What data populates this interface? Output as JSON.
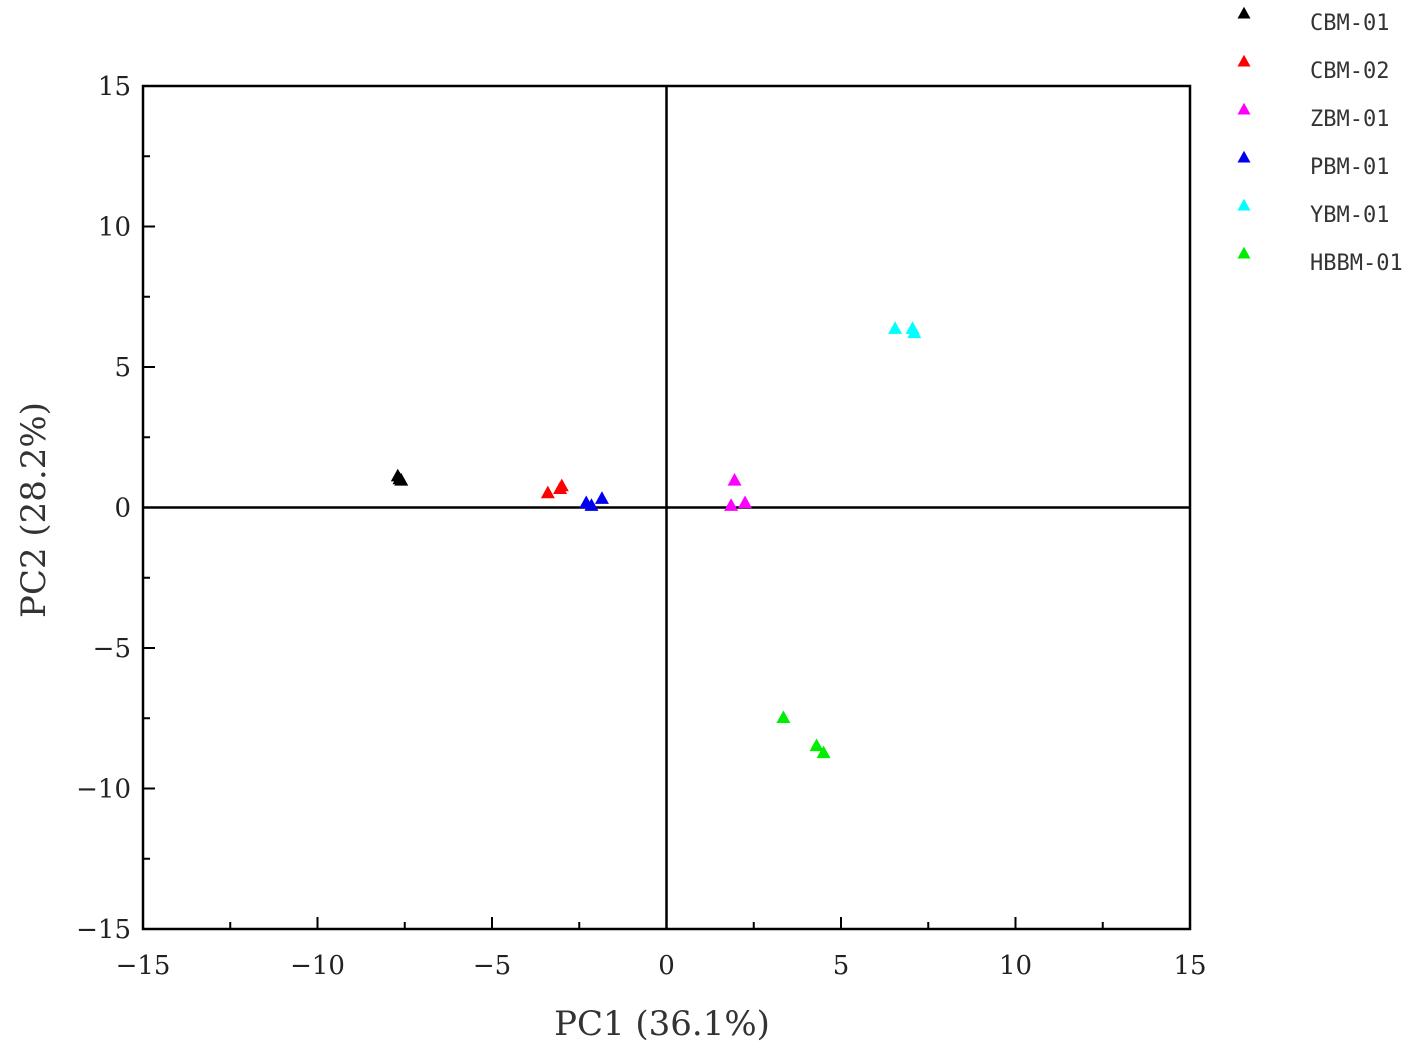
{
  "chart_data": {
    "type": "scatter",
    "title": "",
    "xlabel": "PC1 (36.1%)",
    "ylabel": "PC2 (28.2%)",
    "xlim": [
      -15,
      15
    ],
    "ylim": [
      -15,
      15
    ],
    "xticks": [
      -15,
      -10,
      -5,
      0,
      5,
      10,
      15
    ],
    "yticks": [
      -15,
      -10,
      -5,
      0,
      5,
      10,
      15
    ],
    "xtick_labels": [
      "−15",
      "−10",
      "−5",
      "0",
      "5",
      "10",
      "15"
    ],
    "ytick_labels": [
      "−15",
      "−10",
      "−5",
      "0",
      "5",
      "10",
      "15"
    ],
    "grid": false,
    "zero_lines": true,
    "legend_position": "right-top outside",
    "marker": "triangle",
    "series": [
      {
        "name": "CBM-01",
        "color": "#000000",
        "points": [
          [
            -7.7,
            1.1
          ],
          [
            -7.6,
            0.95
          ],
          [
            -7.65,
            1.0
          ]
        ]
      },
      {
        "name": "CBM-02",
        "color": "#ff0000",
        "points": [
          [
            -3.4,
            0.5
          ],
          [
            -3.0,
            0.75
          ],
          [
            -3.05,
            0.65
          ]
        ]
      },
      {
        "name": "ZBM-01",
        "color": "#ff00ff",
        "points": [
          [
            1.95,
            0.95
          ],
          [
            1.85,
            0.05
          ],
          [
            2.25,
            0.15
          ]
        ]
      },
      {
        "name": "PBM-01",
        "color": "#0000ee",
        "points": [
          [
            -2.3,
            0.15
          ],
          [
            -2.15,
            0.05
          ],
          [
            -1.85,
            0.3
          ]
        ]
      },
      {
        "name": "YBM-01",
        "color": "#00ffff",
        "points": [
          [
            6.55,
            6.35
          ],
          [
            7.05,
            6.35
          ],
          [
            7.1,
            6.2
          ]
        ]
      },
      {
        "name": "HBBM-01",
        "color": "#00ee00",
        "points": [
          [
            3.35,
            -7.5
          ],
          [
            4.3,
            -8.5
          ],
          [
            4.5,
            -8.75
          ]
        ]
      }
    ]
  }
}
